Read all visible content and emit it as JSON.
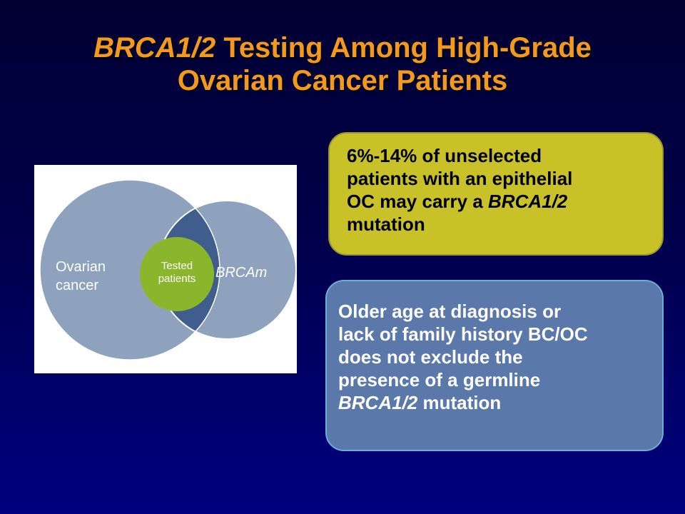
{
  "title": {
    "line1_italic": "BRCA1/2",
    "line1_rest": " Testing Among High-Grade",
    "line2": "Ovarian Cancer Patients"
  },
  "venn": {
    "ovarian_label_line1": "Ovarian",
    "ovarian_label_line2": "cancer",
    "tested_label_line1": "Tested",
    "tested_label_line2": "patients",
    "brcam_label": "BRCAm",
    "colors": {
      "ovarian_circle": "#8ea2be",
      "brcam_circle": "#8ea2be",
      "overlap": "#3f5d8d",
      "tested_circle": "#8ab62c"
    }
  },
  "callouts": {
    "first": {
      "line1": "6%-14% of unselected",
      "line2": "patients with an epithelial",
      "line3_pre": "OC may carry a ",
      "line3_italic": "BRCA1/2",
      "line4": "mutation"
    },
    "second": {
      "line1": "Older age at diagnosis or",
      "line2": "lack of family history BC/OC",
      "line3": "does not exclude the",
      "line4": "presence of a germline",
      "line5_italic": "BRCA1/2",
      "line5_rest": " mutation"
    }
  }
}
